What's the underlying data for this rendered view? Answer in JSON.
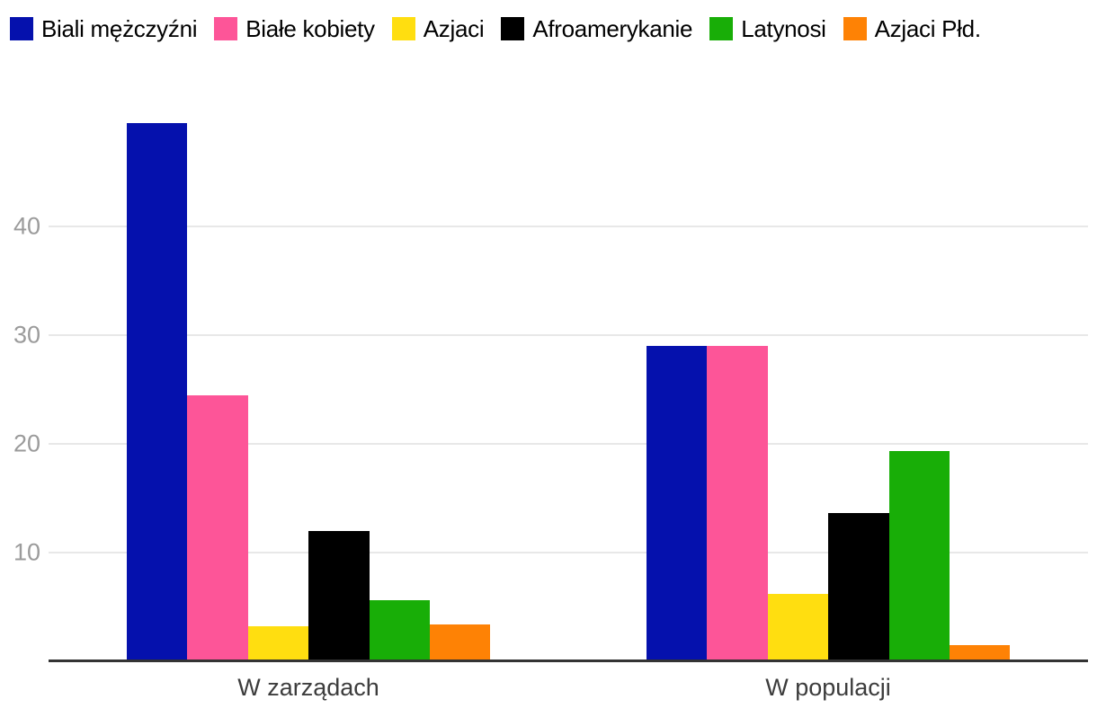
{
  "chart_data": {
    "type": "bar",
    "title": "",
    "xlabel": "",
    "ylabel": "",
    "categories": [
      "W zarządach",
      "W populacji"
    ],
    "series": [
      {
        "name": "Biali mężczyźni",
        "color": "#0511AD",
        "values": [
          49.5,
          29.0
        ]
      },
      {
        "name": "Białe kobiety",
        "color": "#FD5598",
        "values": [
          24.5,
          29.0
        ]
      },
      {
        "name": "Azjaci",
        "color": "#FFDE10",
        "values": [
          3.2,
          6.2
        ]
      },
      {
        "name": "Afroamerykanie",
        "color": "#000000",
        "values": [
          12.0,
          13.6
        ]
      },
      {
        "name": "Latynosi",
        "color": "#18AE07",
        "values": [
          5.6,
          19.3
        ]
      },
      {
        "name": "Azjaci Płd.",
        "color": "#FE8205",
        "values": [
          3.4,
          1.5
        ]
      }
    ],
    "y_ticks": [
      10,
      20,
      30,
      40
    ],
    "ylim": [
      0,
      52.5
    ],
    "grid": true,
    "legend_position": "top-left"
  },
  "colors": {
    "grid_line": "#E8E8E8",
    "axis_line": "#333333",
    "tick_label": "#9B9B9B",
    "category_label": "#3C3C3C",
    "legend_text": "#000000",
    "background": "#FFFFFF"
  }
}
